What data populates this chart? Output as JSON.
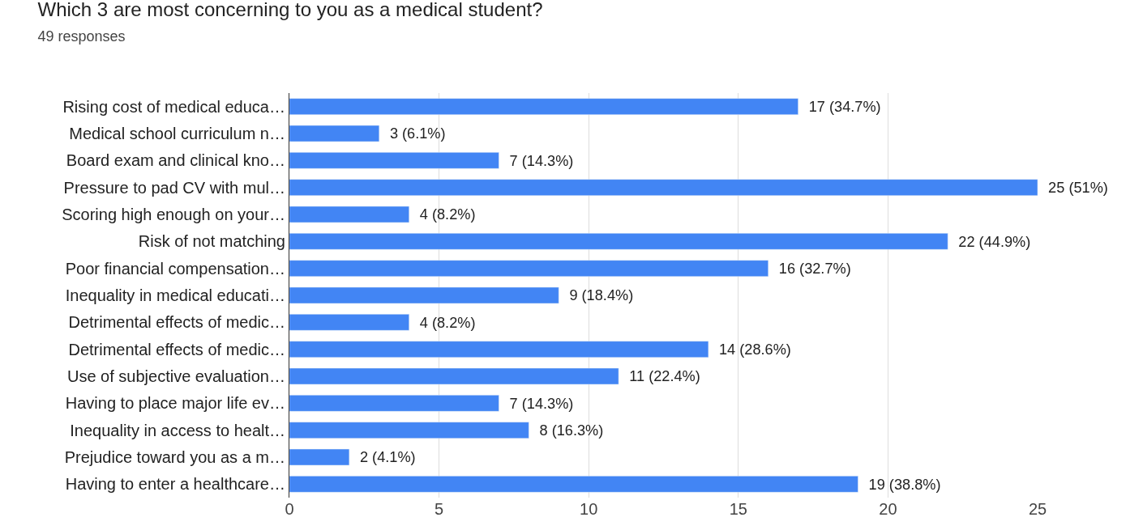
{
  "chart_data": {
    "type": "bar",
    "orientation": "horizontal",
    "title": "Which 3 are most concerning to you as a medical student?",
    "subtitle": "49 responses",
    "categories": [
      "Rising cost of medical educa…",
      "Medical school curriculum n…",
      "Board exam and clinical kno…",
      "Pressure to pad CV with mul…",
      "Scoring high enough on your…",
      "Risk of not matching",
      "Poor financial compensation…",
      "Inequality in medical educati…",
      "Detrimental effects of medic…",
      "Detrimental effects of medic…",
      "Use of subjective evaluation…",
      "Having to place major life ev…",
      "Inequality in access to healt…",
      "Prejudice toward you as a m…",
      "Having to enter a healthcare…"
    ],
    "values": [
      17,
      3,
      7,
      25,
      4,
      22,
      16,
      9,
      4,
      14,
      11,
      7,
      8,
      2,
      19
    ],
    "value_labels": [
      "17 (34.7%)",
      "3 (6.1%)",
      "7 (14.3%)",
      "25 (51%)",
      "4 (8.2%)",
      "22 (44.9%)",
      "16 (32.7%)",
      "9 (18.4%)",
      "4 (8.2%)",
      "14 (28.6%)",
      "11 (22.4%)",
      "7 (14.3%)",
      "8 (16.3%)",
      "2 (4.1%)",
      "19 (38.8%)"
    ],
    "color": "#4285f4",
    "xlim": [
      0,
      25
    ],
    "xticks": [
      0,
      5,
      10,
      15,
      20,
      25
    ],
    "grid": "x",
    "legend": false
  }
}
